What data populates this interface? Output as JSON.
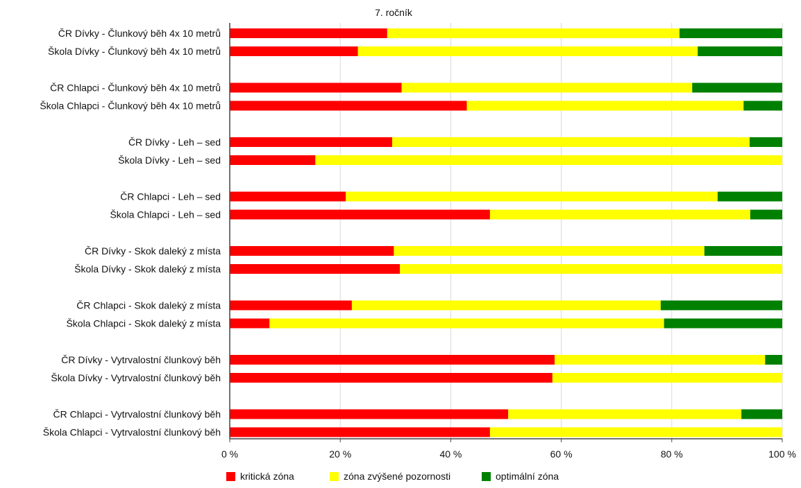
{
  "chart_data": {
    "type": "bar",
    "orientation": "horizontal",
    "stacked": true,
    "title": "7. ročník",
    "categories": [
      "ČR Dívky - Člunkový běh 4x 10 metrů",
      "Škola Dívky - Člunkový běh 4x 10 metrů",
      "ČR Chlapci - Člunkový běh 4x 10 metrů",
      "Škola Chlapci - Člunkový běh 4x 10 metrů",
      "ČR Dívky - Leh – sed",
      "Škola Dívky - Leh – sed",
      "ČR Chlapci - Leh – sed",
      "Škola Chlapci - Leh – sed",
      "ČR Dívky - Skok daleký z místa",
      "Škola Dívky - Skok daleký z místa",
      "ČR Chlapci - Skok daleký z místa",
      "Škola Chlapci - Skok daleký z místa",
      "ČR Dívky - Vytrvalostní člunkový běh",
      "Škola Dívky - Vytrvalostní člunkový běh",
      "ČR Chlapci - Vytrvalostní člunkový běh",
      "Škola Chlapci - Vytrvalostní člunkový běh"
    ],
    "series": [
      {
        "name": "kritická zóna",
        "color": "#ff0000",
        "values": [
          28.5,
          23.2,
          31.1,
          42.9,
          29.4,
          15.5,
          21.0,
          47.1,
          29.7,
          30.8,
          22.1,
          7.2,
          58.8,
          58.4,
          50.4,
          47.1
        ]
      },
      {
        "name": "zóna zvýšené pozornosti",
        "color": "#ffff00",
        "values": [
          52.9,
          61.5,
          52.6,
          50.1,
          64.7,
          84.5,
          67.3,
          47.1,
          56.2,
          69.2,
          55.9,
          71.4,
          38.1,
          41.6,
          42.2,
          52.9
        ]
      },
      {
        "name": "optimální zóna",
        "color": "#008000",
        "values": [
          18.6,
          15.3,
          16.3,
          7.0,
          5.9,
          0.0,
          11.7,
          5.8,
          14.1,
          0.0,
          22.0,
          21.4,
          3.1,
          0.0,
          7.4,
          0.0
        ]
      }
    ],
    "x_ticks": [
      "0 %",
      "20 %",
      "40 %",
      "60 %",
      "80 %",
      "100 %"
    ],
    "xlim": [
      0,
      100
    ],
    "grid": true,
    "legend": "bottom"
  }
}
